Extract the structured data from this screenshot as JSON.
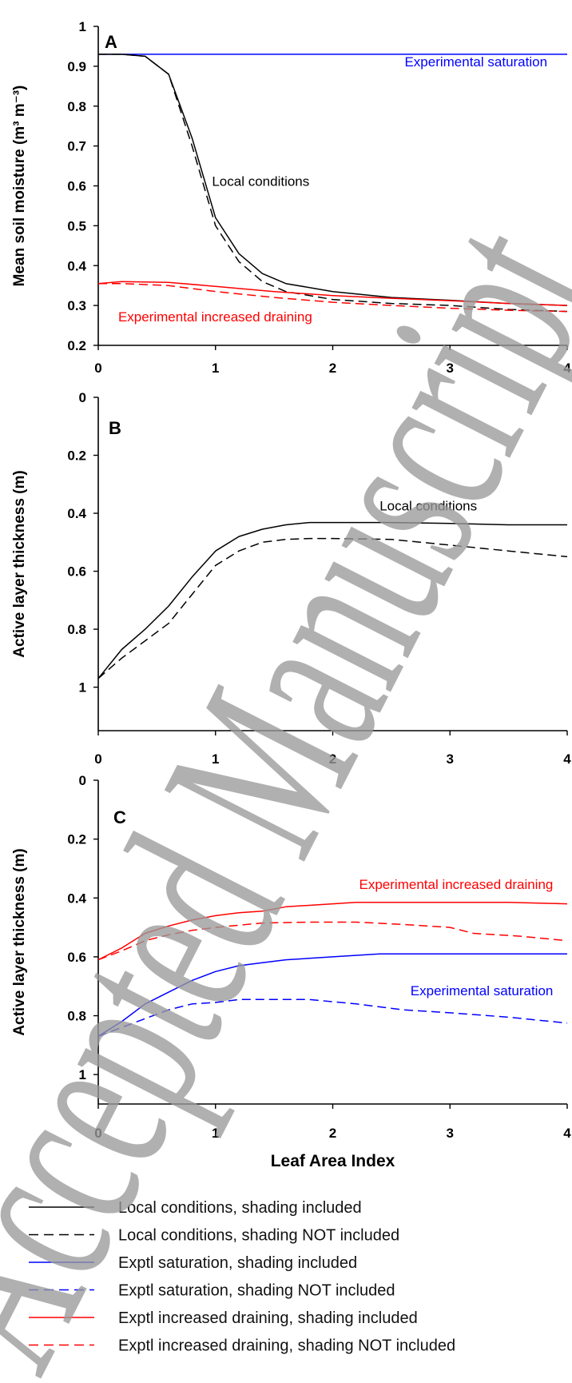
{
  "colors": {
    "local": "#000000",
    "saturation": "#0000ff",
    "draining": "#ff0000",
    "watermark": "#9a9a9a"
  },
  "watermark": {
    "text": "Accepted Manuscript"
  },
  "chart_data": [
    {
      "type": "line",
      "panel": "A",
      "xlabel": "",
      "ylabel": "Mean  soil moisture (m³ m⁻³)",
      "xlim": [
        0,
        4
      ],
      "ylim": [
        0.2,
        1
      ],
      "y_inverted": false,
      "xticks": [
        "0",
        "1",
        "2",
        "3",
        "4"
      ],
      "yticks": [
        "0.2",
        "0.3",
        "0.4",
        "0.5",
        "0.6",
        "0.7",
        "0.8",
        "0.9",
        "1"
      ],
      "grid": false,
      "annotations": [
        {
          "text": "Experimental saturation",
          "x": 3.83,
          "y": 0.9,
          "anchor": "end",
          "color": "saturation"
        },
        {
          "text": "Local conditions",
          "x": 0.97,
          "y": 0.6,
          "anchor": "start",
          "color": "local"
        },
        {
          "text": "Experimental increased draining",
          "x": 0.17,
          "y": 0.26,
          "anchor": "start",
          "color": "draining"
        }
      ],
      "series": [
        {
          "color": "saturation",
          "dash": false,
          "x": [
            0,
            4
          ],
          "y": [
            0.93,
            0.93
          ]
        },
        {
          "color": "local",
          "dash": false,
          "x": [
            0,
            0.2,
            0.4,
            0.6,
            0.8,
            1.0,
            1.2,
            1.4,
            1.6,
            2.0,
            2.5,
            3.0,
            3.5,
            4.0
          ],
          "y": [
            0.93,
            0.93,
            0.925,
            0.88,
            0.72,
            0.52,
            0.43,
            0.38,
            0.355,
            0.335,
            0.32,
            0.313,
            0.305,
            0.3
          ]
        },
        {
          "color": "local",
          "dash": true,
          "x": [
            0,
            0.2,
            0.4,
            0.6,
            0.8,
            1.0,
            1.2,
            1.4,
            1.6,
            2.0,
            2.5,
            3.0,
            3.5,
            4.0
          ],
          "y": [
            0.93,
            0.93,
            0.925,
            0.88,
            0.7,
            0.5,
            0.41,
            0.36,
            0.335,
            0.315,
            0.305,
            0.3,
            0.29,
            0.285
          ]
        },
        {
          "color": "draining",
          "dash": false,
          "x": [
            0,
            0.2,
            0.6,
            1.0,
            1.5,
            2.0,
            2.5,
            3.0,
            3.5,
            4.0
          ],
          "y": [
            0.355,
            0.36,
            0.358,
            0.348,
            0.335,
            0.325,
            0.318,
            0.312,
            0.305,
            0.3
          ]
        },
        {
          "color": "draining",
          "dash": true,
          "x": [
            0,
            0.2,
            0.6,
            1.0,
            1.5,
            2.0,
            2.5,
            3.0,
            3.5,
            4.0
          ],
          "y": [
            0.355,
            0.355,
            0.35,
            0.335,
            0.32,
            0.308,
            0.3,
            0.293,
            0.288,
            0.285
          ]
        }
      ]
    },
    {
      "type": "line",
      "panel": "B",
      "xlabel": "",
      "ylabel": "Active layer thickness (m)",
      "xlim": [
        0,
        4
      ],
      "ylim": [
        1.15,
        0
      ],
      "y_inverted": true,
      "xticks": [
        "0",
        "1",
        "2",
        "3",
        "4"
      ],
      "yticks": [
        "0",
        "0.2",
        "0.4",
        "0.6",
        "0.8",
        "1"
      ],
      "grid": false,
      "annotations": [
        {
          "text": "Local conditions",
          "x": 2.4,
          "y": 0.39,
          "anchor": "start",
          "color": "local"
        }
      ],
      "series": [
        {
          "color": "local",
          "dash": false,
          "x": [
            0,
            0.2,
            0.4,
            0.6,
            0.8,
            1.0,
            1.2,
            1.4,
            1.6,
            1.8,
            2.0,
            2.5,
            3.0,
            3.5,
            4.0
          ],
          "y": [
            0.97,
            0.87,
            0.8,
            0.72,
            0.62,
            0.53,
            0.48,
            0.455,
            0.44,
            0.432,
            0.432,
            0.432,
            0.435,
            0.44,
            0.44
          ]
        },
        {
          "color": "local",
          "dash": true,
          "x": [
            0,
            0.2,
            0.4,
            0.6,
            0.8,
            1.0,
            1.2,
            1.4,
            1.6,
            1.8,
            2.0,
            2.5,
            3.0,
            3.5,
            4.0
          ],
          "y": [
            0.97,
            0.9,
            0.84,
            0.78,
            0.68,
            0.58,
            0.53,
            0.5,
            0.49,
            0.487,
            0.487,
            0.49,
            0.51,
            0.53,
            0.55
          ]
        }
      ]
    },
    {
      "type": "line",
      "panel": "C",
      "xlabel": "Leaf Area Index",
      "ylabel": "Active layer thickness (m)",
      "xlim": [
        0,
        4
      ],
      "ylim": [
        1.1,
        0
      ],
      "y_inverted": true,
      "xticks": [
        "0",
        "1",
        "2",
        "3",
        "4"
      ],
      "yticks": [
        "0",
        "0.2",
        "0.4",
        "0.6",
        "0.8",
        "1"
      ],
      "grid": false,
      "annotations": [
        {
          "text": "Experimental increased draining",
          "x": 3.88,
          "y": 0.37,
          "anchor": "end",
          "color": "draining"
        },
        {
          "text": "Experimental saturation",
          "x": 3.88,
          "y": 0.73,
          "anchor": "end",
          "color": "saturation"
        }
      ],
      "series": [
        {
          "color": "draining",
          "dash": false,
          "x": [
            0,
            0.2,
            0.4,
            0.6,
            0.8,
            1.0,
            1.2,
            1.4,
            1.6,
            2.0,
            2.2,
            2.6,
            3.0,
            3.5,
            4.0
          ],
          "y": [
            0.61,
            0.57,
            0.52,
            0.495,
            0.475,
            0.46,
            0.45,
            0.445,
            0.43,
            0.42,
            0.415,
            0.415,
            0.415,
            0.415,
            0.42
          ]
        },
        {
          "color": "draining",
          "dash": true,
          "x": [
            0,
            0.2,
            0.4,
            0.6,
            0.8,
            1.0,
            1.4,
            1.8,
            2.2,
            2.6,
            3.0,
            3.2,
            3.6,
            4.0
          ],
          "y": [
            0.61,
            0.58,
            0.545,
            0.525,
            0.51,
            0.5,
            0.485,
            0.482,
            0.482,
            0.49,
            0.5,
            0.52,
            0.53,
            0.545
          ]
        },
        {
          "color": "saturation",
          "dash": false,
          "x": [
            0,
            0.2,
            0.4,
            0.6,
            0.8,
            1.0,
            1.2,
            1.4,
            1.6,
            2.0,
            2.4,
            3.0,
            3.5,
            4.0
          ],
          "y": [
            0.87,
            0.82,
            0.76,
            0.72,
            0.68,
            0.65,
            0.63,
            0.62,
            0.61,
            0.6,
            0.59,
            0.59,
            0.59,
            0.59
          ]
        },
        {
          "color": "saturation",
          "dash": true,
          "x": [
            0,
            0.2,
            0.4,
            0.6,
            0.8,
            1.0,
            1.2,
            1.4,
            1.8,
            2.2,
            2.6,
            3.0,
            3.5,
            4.0
          ],
          "y": [
            0.87,
            0.84,
            0.81,
            0.78,
            0.76,
            0.755,
            0.745,
            0.745,
            0.745,
            0.76,
            0.78,
            0.79,
            0.805,
            0.825
          ]
        }
      ]
    }
  ],
  "legend": {
    "items": [
      {
        "label": "Local conditions,  shading included",
        "color": "local",
        "dash": false
      },
      {
        "label": "Local conditions,  shading NOT included",
        "color": "local",
        "dash": true
      },
      {
        "label": "Exptl saturation, shading included",
        "color": "saturation",
        "dash": false
      },
      {
        "label": "Exptl saturation, shading NOT included",
        "color": "saturation",
        "dash": true
      },
      {
        "label": "Exptl increased draining, shading included",
        "color": "draining",
        "dash": false
      },
      {
        "label": "Exptl increased draining, shading NOT included",
        "color": "draining",
        "dash": true
      }
    ]
  }
}
